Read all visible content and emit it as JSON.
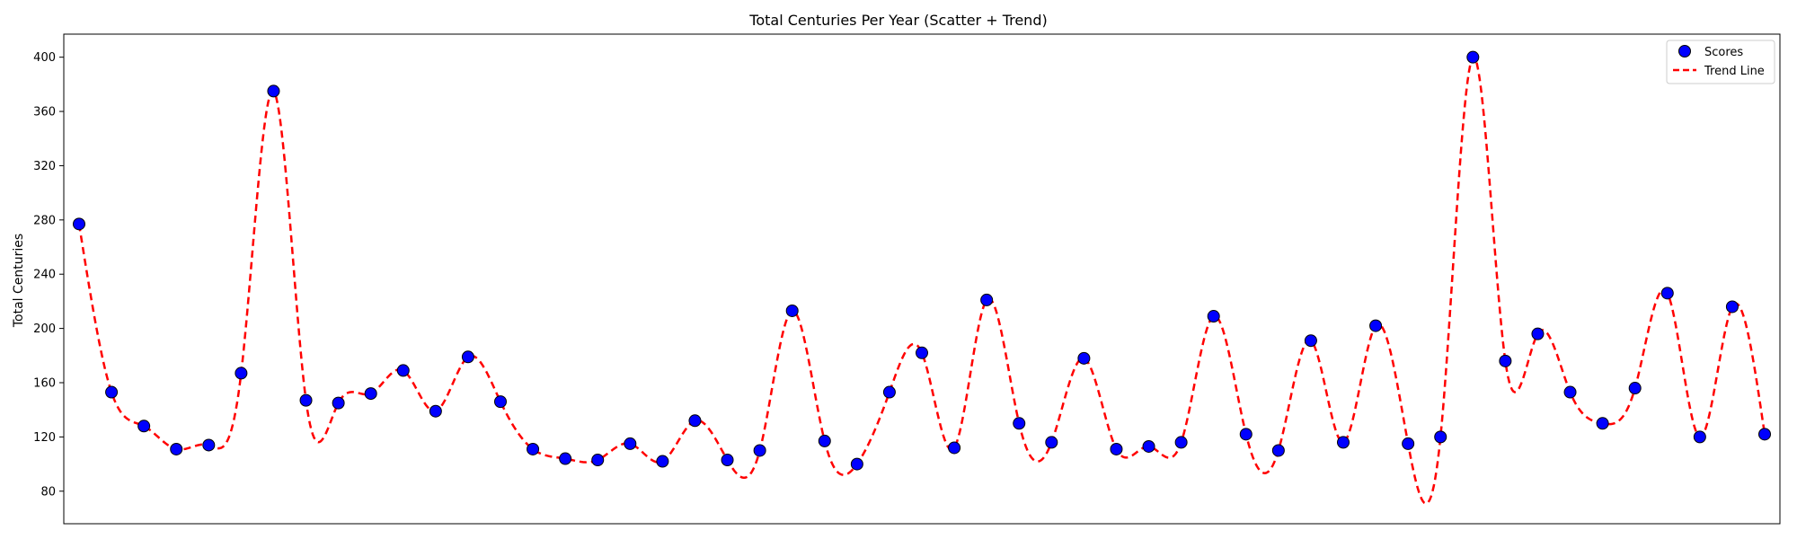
{
  "chart_data": {
    "type": "scatter",
    "title": "Total Centuries Per Year (Scatter + Trend)",
    "xlabel": "",
    "ylabel": "Total Centuries",
    "ylim": [
      56,
      417
    ],
    "yticks": [
      80,
      120,
      160,
      200,
      240,
      280,
      320,
      360,
      400
    ],
    "x_ticks_shown": false,
    "grid": false,
    "legend_position": "top-right",
    "series": [
      {
        "name": "Scores",
        "kind": "scatter",
        "color": "#0000ff",
        "edge_color": "#000000",
        "values": [
          277,
          153,
          128,
          111,
          114,
          167,
          375,
          147,
          145,
          152,
          169,
          139,
          179,
          146,
          111,
          104,
          103,
          115,
          102,
          132,
          103,
          110,
          213,
          117,
          100,
          153,
          182,
          112,
          221,
          130,
          116,
          178,
          111,
          113,
          116,
          209,
          122,
          110,
          191,
          116,
          202,
          115,
          120,
          400,
          176,
          196,
          153,
          130,
          156,
          226,
          120,
          216,
          122
        ]
      },
      {
        "name": "Trend Line",
        "kind": "line",
        "style": "dashed",
        "color": "#ff0000",
        "smoothing": "cubic-spline through scores"
      }
    ]
  }
}
